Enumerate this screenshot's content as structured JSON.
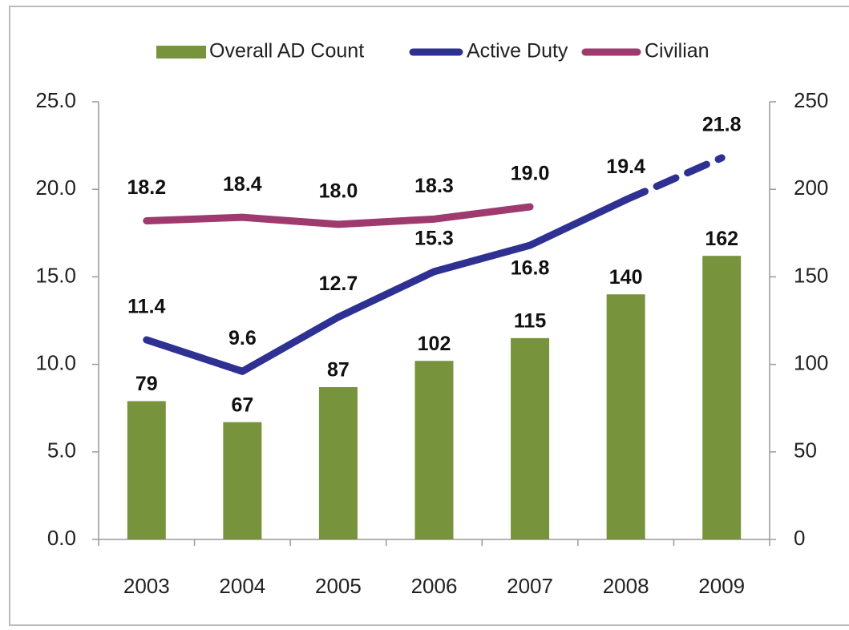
{
  "chart_data": {
    "type": "bar-line",
    "categories": [
      "2003",
      "2004",
      "2005",
      "2006",
      "2007",
      "2008",
      "2009"
    ],
    "series": [
      {
        "name": "Overall AD Count",
        "type": "bar",
        "axis": "y2",
        "color": "#77933c",
        "values": [
          79,
          67,
          87,
          102,
          115,
          140,
          162
        ]
      },
      {
        "name": "Active Duty",
        "type": "line",
        "color": "#2e3192",
        "values": [
          11.4,
          9.6,
          12.7,
          15.3,
          16.8,
          19.4,
          21.8
        ],
        "value_labels": [
          "11.4",
          "9.6",
          "12.7",
          "15.3",
          "16.8",
          "19.4",
          "21.8"
        ],
        "dashed_from": 5
      },
      {
        "name": "Civilian",
        "type": "line",
        "color": "#9e3a6e",
        "values": [
          18.2,
          18.4,
          18.0,
          18.3,
          19.0,
          null,
          null
        ],
        "value_labels": [
          "18.2",
          "18.4",
          "18.0",
          "18.3",
          "19.0",
          null,
          null
        ]
      }
    ],
    "ylim": [
      0,
      25
    ],
    "yticks": [
      {
        "value": 0,
        "label": "0.0"
      },
      {
        "value": 5,
        "label": "5.0"
      },
      {
        "value": 10,
        "label": "10.0"
      },
      {
        "value": 15,
        "label": "15.0"
      },
      {
        "value": 20,
        "label": "20.0"
      },
      {
        "value": 25,
        "label": "25.0"
      }
    ],
    "y2lim": [
      0,
      250
    ],
    "y2ticks": [
      0,
      50,
      100,
      150,
      200,
      250
    ],
    "legend": "top"
  }
}
